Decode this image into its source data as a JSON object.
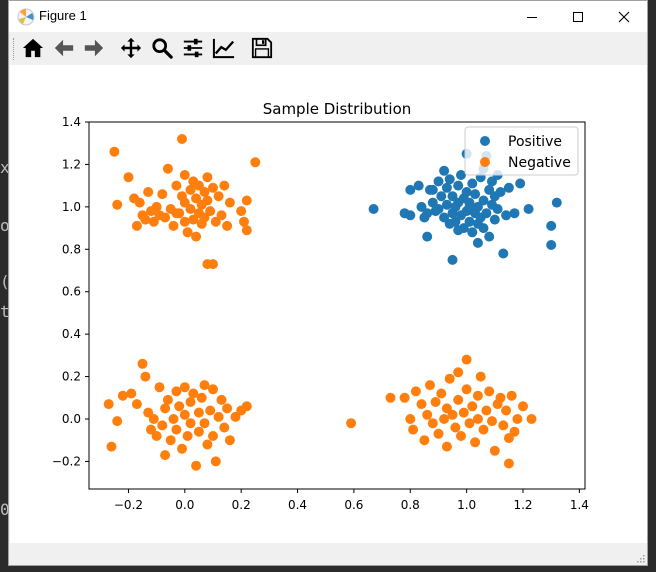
{
  "window": {
    "title": "Figure 1"
  },
  "toolbar": {
    "tools": [
      {
        "name": "home-icon",
        "tooltip": "Home"
      },
      {
        "name": "back-icon",
        "tooltip": "Back"
      },
      {
        "name": "forward-icon",
        "tooltip": "Forward"
      },
      {
        "name": "pan-icon",
        "tooltip": "Pan"
      },
      {
        "name": "zoom-icon",
        "tooltip": "Zoom"
      },
      {
        "name": "subplots-icon",
        "tooltip": "Subplots"
      },
      {
        "name": "customize-icon",
        "tooltip": "Customize"
      },
      {
        "name": "save-icon",
        "tooltip": "Save"
      }
    ]
  },
  "desktop": {
    "chars": [
      "x",
      "o",
      "(",
      "t",
      "0"
    ]
  },
  "colors": {
    "positive": "#1f77b4",
    "negative": "#ff7f0e"
  },
  "chart_data": {
    "type": "scatter",
    "title": "Sample Distribution",
    "xlabel": "",
    "ylabel": "",
    "xlim": [
      -0.34,
      1.42
    ],
    "ylim": [
      -0.33,
      1.4
    ],
    "xticks": [
      "−0.2",
      "0.0",
      "0.2",
      "0.4",
      "0.6",
      "0.8",
      "1.0",
      "1.2",
      "1.4"
    ],
    "xtick_values": [
      -0.2,
      0.0,
      0.2,
      0.4,
      0.6,
      0.8,
      1.0,
      1.2,
      1.4
    ],
    "yticks": [
      "−0.2",
      "0.0",
      "0.2",
      "0.4",
      "0.6",
      "0.8",
      "1.0",
      "1.2",
      "1.4"
    ],
    "ytick_values": [
      -0.2,
      0.0,
      0.2,
      0.4,
      0.6,
      0.8,
      1.0,
      1.2,
      1.4
    ],
    "legend": {
      "position": "top-right",
      "entries": [
        "Positive",
        "Negative"
      ]
    },
    "series": [
      {
        "name": "Positive",
        "color": "#1f77b4",
        "points": [
          [
            0.67,
            0.99
          ],
          [
            0.78,
            0.97
          ],
          [
            0.8,
            0.96
          ],
          [
            0.8,
            1.08
          ],
          [
            0.83,
            1.1
          ],
          [
            0.84,
            1.0
          ],
          [
            0.85,
            0.95
          ],
          [
            0.86,
            0.86
          ],
          [
            0.87,
            1.08
          ],
          [
            0.88,
            1.02
          ],
          [
            0.89,
            0.98
          ],
          [
            0.9,
            1.12
          ],
          [
            0.9,
            0.99
          ],
          [
            0.91,
            1.05
          ],
          [
            0.92,
            0.95
          ],
          [
            0.92,
            1.17
          ],
          [
            0.93,
            1.09
          ],
          [
            0.93,
            1.01
          ],
          [
            0.94,
            0.92
          ],
          [
            0.94,
            1.13
          ],
          [
            0.95,
            0.97
          ],
          [
            0.95,
            1.05
          ],
          [
            0.95,
            0.75
          ],
          [
            0.96,
            1.0
          ],
          [
            0.96,
            0.93
          ],
          [
            0.97,
            1.1
          ],
          [
            0.97,
            1.02
          ],
          [
            0.98,
            0.96
          ],
          [
            0.98,
            1.15
          ],
          [
            0.99,
            0.9
          ],
          [
            0.99,
            1.04
          ],
          [
            1.0,
            0.98
          ],
          [
            1.0,
            1.07
          ],
          [
            1.0,
            1.25
          ],
          [
            1.01,
            0.93
          ],
          [
            1.01,
            1.02
          ],
          [
            1.02,
            0.88
          ],
          [
            1.02,
            1.11
          ],
          [
            1.03,
            0.97
          ],
          [
            1.03,
            1.06
          ],
          [
            1.04,
            0.83
          ],
          [
            1.04,
            1.0
          ],
          [
            1.05,
            0.95
          ],
          [
            1.05,
            1.14
          ],
          [
            1.06,
            0.9
          ],
          [
            1.06,
            1.03
          ],
          [
            1.07,
            1.24
          ],
          [
            1.07,
            0.97
          ],
          [
            1.08,
            1.08
          ],
          [
            1.08,
            0.86
          ],
          [
            1.09,
            1.01
          ],
          [
            1.09,
            1.12
          ],
          [
            1.1,
            0.94
          ],
          [
            1.1,
            1.05
          ],
          [
            1.11,
            1.15
          ],
          [
            1.11,
            0.99
          ],
          [
            1.12,
            1.07
          ],
          [
            1.13,
            0.78
          ],
          [
            1.14,
            0.96
          ],
          [
            1.15,
            1.09
          ],
          [
            1.17,
            0.97
          ],
          [
            1.19,
            1.11
          ],
          [
            1.22,
            0.99
          ],
          [
            1.3,
            0.91
          ],
          [
            1.3,
            0.82
          ],
          [
            1.32,
            1.02
          ],
          [
            0.86,
            0.97
          ],
          [
            0.88,
            1.08
          ],
          [
            0.97,
            0.89
          ],
          [
            1.04,
            0.92
          ],
          [
            1.06,
            1.18
          ],
          [
            1.01,
            1.0
          ]
        ]
      },
      {
        "name": "Negative",
        "color": "#ff7f0e",
        "points": [
          [
            -0.25,
            1.26
          ],
          [
            -0.24,
            1.01
          ],
          [
            -0.2,
            1.14
          ],
          [
            -0.18,
            1.04
          ],
          [
            -0.17,
            0.91
          ],
          [
            -0.16,
            1.02
          ],
          [
            -0.15,
            0.96
          ],
          [
            -0.14,
            0.94
          ],
          [
            -0.13,
            1.07
          ],
          [
            -0.12,
            0.98
          ],
          [
            -0.11,
            0.93
          ],
          [
            -0.1,
            1.0
          ],
          [
            -0.09,
            0.96
          ],
          [
            -0.08,
            1.06
          ],
          [
            -0.07,
            0.95
          ],
          [
            -0.06,
            1.18
          ],
          [
            -0.05,
            0.99
          ],
          [
            -0.04,
            0.91
          ],
          [
            -0.03,
            1.1
          ],
          [
            -0.02,
            0.97
          ],
          [
            -0.01,
            1.05
          ],
          [
            -0.01,
            1.32
          ],
          [
            0.0,
            0.93
          ],
          [
            0.0,
            1.02
          ],
          [
            0.01,
            0.88
          ],
          [
            0.02,
            1.08
          ],
          [
            0.02,
            0.99
          ],
          [
            0.03,
            1.12
          ],
          [
            0.03,
            0.94
          ],
          [
            0.04,
            1.04
          ],
          [
            0.04,
            0.86
          ],
          [
            0.05,
            0.97
          ],
          [
            0.05,
            1.1
          ],
          [
            0.06,
            1.01
          ],
          [
            0.06,
            0.92
          ],
          [
            0.07,
            1.07
          ],
          [
            0.07,
            0.95
          ],
          [
            0.08,
            0.73
          ],
          [
            0.08,
            1.03
          ],
          [
            0.09,
            0.98
          ],
          [
            0.1,
            0.73
          ],
          [
            0.1,
            1.09
          ],
          [
            0.11,
            0.93
          ],
          [
            0.12,
            1.05
          ],
          [
            0.13,
            0.96
          ],
          [
            0.14,
            1.1
          ],
          [
            0.15,
            0.91
          ],
          [
            0.16,
            1.02
          ],
          [
            0.2,
            0.98
          ],
          [
            0.21,
            0.93
          ],
          [
            0.22,
            1.03
          ],
          [
            0.22,
            0.89
          ],
          [
            0.25,
            1.21
          ],
          [
            0.0,
            1.15
          ],
          [
            -0.03,
            0.97
          ],
          [
            0.08,
            1.14
          ],
          [
            -0.27,
            0.07
          ],
          [
            -0.26,
            -0.13
          ],
          [
            -0.24,
            -0.01
          ],
          [
            -0.22,
            0.11
          ],
          [
            -0.19,
            0.12
          ],
          [
            -0.17,
            0.07
          ],
          [
            -0.15,
            0.26
          ],
          [
            -0.14,
            0.2
          ],
          [
            -0.13,
            0.03
          ],
          [
            -0.12,
            -0.05
          ],
          [
            -0.11,
            0.0
          ],
          [
            -0.1,
            -0.08
          ],
          [
            -0.09,
            0.15
          ],
          [
            -0.08,
            -0.03
          ],
          [
            -0.07,
            -0.17
          ],
          [
            -0.07,
            0.05
          ],
          [
            -0.06,
            0.09
          ],
          [
            -0.05,
            -0.1
          ],
          [
            -0.04,
            0.0
          ],
          [
            -0.03,
            0.13
          ],
          [
            -0.03,
            -0.05
          ],
          [
            -0.02,
            0.06
          ],
          [
            -0.01,
            -0.14
          ],
          [
            0.0,
            0.02
          ],
          [
            0.0,
            0.15
          ],
          [
            0.01,
            -0.08
          ],
          [
            0.02,
            0.08
          ],
          [
            0.02,
            -0.02
          ],
          [
            0.03,
            0.12
          ],
          [
            0.04,
            -0.22
          ],
          [
            0.05,
            0.03
          ],
          [
            0.05,
            -0.06
          ],
          [
            0.06,
            0.1
          ],
          [
            0.07,
            -0.02
          ],
          [
            0.07,
            0.16
          ],
          [
            0.08,
            -0.12
          ],
          [
            0.09,
            0.04
          ],
          [
            0.1,
            -0.08
          ],
          [
            0.1,
            0.14
          ],
          [
            0.11,
            -0.2
          ],
          [
            0.12,
            0.01
          ],
          [
            0.13,
            0.09
          ],
          [
            0.14,
            -0.04
          ],
          [
            0.15,
            0.05
          ],
          [
            0.16,
            -0.1
          ],
          [
            0.18,
            0.01
          ],
          [
            0.2,
            0.04
          ],
          [
            0.22,
            0.06
          ],
          [
            0.59,
            -0.02
          ],
          [
            0.73,
            0.1
          ],
          [
            0.78,
            0.1
          ],
          [
            0.8,
            0.0
          ],
          [
            0.81,
            -0.05
          ],
          [
            0.82,
            0.13
          ],
          [
            0.84,
            0.07
          ],
          [
            0.85,
            -0.1
          ],
          [
            0.86,
            0.02
          ],
          [
            0.87,
            0.16
          ],
          [
            0.88,
            -0.02
          ],
          [
            0.89,
            0.08
          ],
          [
            0.9,
            -0.07
          ],
          [
            0.91,
            0.12
          ],
          [
            0.92,
            0.0
          ],
          [
            0.93,
            0.05
          ],
          [
            0.93,
            -0.13
          ],
          [
            0.94,
            0.19
          ],
          [
            0.95,
            0.02
          ],
          [
            0.96,
            -0.04
          ],
          [
            0.97,
            0.09
          ],
          [
            0.97,
            0.22
          ],
          [
            0.98,
            -0.08
          ],
          [
            0.99,
            0.03
          ],
          [
            1.0,
            0.14
          ],
          [
            1.0,
            0.28
          ],
          [
            1.01,
            -0.02
          ],
          [
            1.02,
            0.06
          ],
          [
            1.03,
            -0.11
          ],
          [
            1.04,
            0.11
          ],
          [
            1.04,
            0.0
          ],
          [
            1.05,
            0.2
          ],
          [
            1.06,
            -0.05
          ],
          [
            1.07,
            0.04
          ],
          [
            1.08,
            0.13
          ],
          [
            1.09,
            -0.01
          ],
          [
            1.1,
            -0.15
          ],
          [
            1.11,
            0.07
          ],
          [
            1.12,
            0.1
          ],
          [
            1.13,
            -0.03
          ],
          [
            1.14,
            0.04
          ],
          [
            1.15,
            -0.09
          ],
          [
            1.15,
            -0.21
          ],
          [
            1.16,
            0.11
          ],
          [
            1.17,
            -0.06
          ],
          [
            1.18,
            0.0
          ],
          [
            1.2,
            0.06
          ],
          [
            1.23,
            0.0
          ]
        ]
      }
    ]
  }
}
